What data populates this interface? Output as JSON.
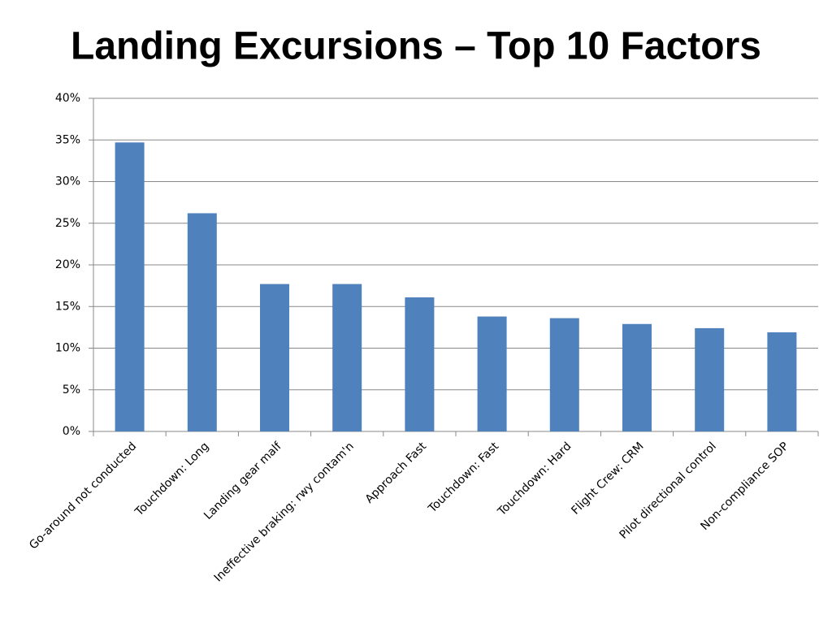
{
  "chart_data": {
    "type": "bar",
    "title": "Landing Excursions – Top 10 Factors",
    "categories": [
      "Go-around not conducted",
      "Touchdown: Long",
      "Landing gear malf",
      "Ineffective braking: rwy contam'n",
      "Approach Fast",
      "Touchdown: Fast",
      "Touchdown: Hard",
      "Flight Crew: CRM",
      "Pilot directional control",
      "Non-compliance SOP"
    ],
    "values": [
      34.7,
      26.2,
      17.7,
      17.7,
      16.1,
      13.8,
      13.6,
      12.9,
      12.4,
      11.9
    ],
    "color": "#4f81bd",
    "ylim": [
      0,
      40
    ],
    "yticks": [
      {
        "value": 0,
        "label": "0%"
      },
      {
        "value": 5,
        "label": "5%"
      },
      {
        "value": 10,
        "label": "10%"
      },
      {
        "value": 15,
        "label": "15%"
      },
      {
        "value": 20,
        "label": "20%"
      },
      {
        "value": 25,
        "label": "25%"
      },
      {
        "value": 30,
        "label": "30%"
      },
      {
        "value": 35,
        "label": "35%"
      },
      {
        "value": 40,
        "label": "40%"
      }
    ],
    "grid": true
  }
}
